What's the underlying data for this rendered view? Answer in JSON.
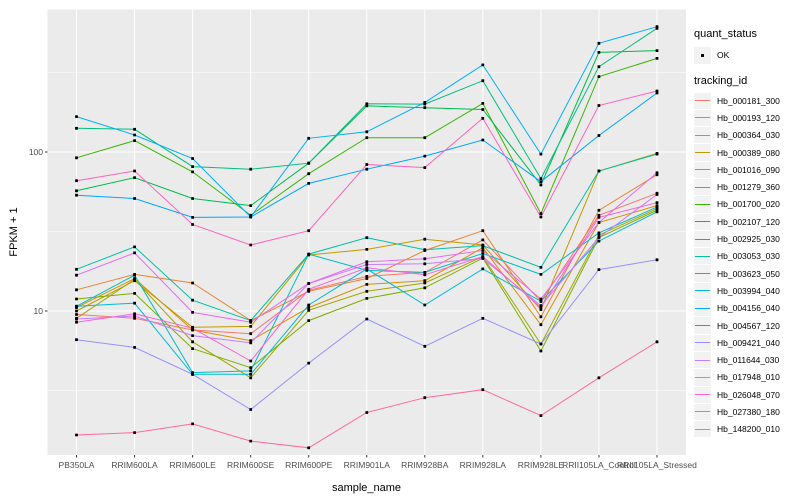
{
  "chart_data": {
    "type": "line",
    "title": "",
    "xlabel": "sample_name",
    "ylabel": "FPKM + 1",
    "y_scale": "log10",
    "y_ticks": [
      10,
      100
    ],
    "y_minor_ticks": [
      3.1623,
      31.623,
      316.23
    ],
    "ylim": [
      1.2,
      800
    ],
    "grid": true,
    "panel_bg": "#EBEBEB",
    "grid_color": "#FFFFFF",
    "point_color": "#000000",
    "x_categories": [
      "PB350LA",
      "RRIM600LA",
      "RRIM600LE",
      "RRIM600SE",
      "RRIM600PE",
      "RRIM901LA",
      "RRIM928BA",
      "RRIM928LA",
      "RRIM928LE",
      "RRII105LA_Control",
      "RRII105LA_Stressed"
    ],
    "series": [
      {
        "name": "Hb_000181_300",
        "color": "#F8766D",
        "values": [
          9.5,
          9.0,
          7.6,
          7.2,
          13.5,
          16.5,
          17.5,
          28,
          11.5,
          40,
          55
        ]
      },
      {
        "name": "Hb_000193_120",
        "color": "#EA8331",
        "values": [
          13.6,
          17,
          15,
          8.7,
          13.3,
          16,
          24,
          32,
          9.2,
          43,
          72
        ]
      },
      {
        "name": "Hb_000364_030",
        "color": "#D89000",
        "values": [
          10.5,
          16,
          7.6,
          6.5,
          10.5,
          14.7,
          15.5,
          25,
          8.2,
          36,
          46
        ]
      },
      {
        "name": "Hb_000389_080",
        "color": "#C09B00",
        "values": [
          10,
          15.5,
          7.9,
          8.0,
          22.5,
          24.4,
          28.3,
          26,
          10.2,
          76,
          98
        ]
      },
      {
        "name": "Hb_001016_090",
        "color": "#A3A500",
        "values": [
          9.0,
          15.8,
          6.4,
          3.8,
          10.1,
          13.3,
          15,
          22,
          6.2,
          30,
          44
        ]
      },
      {
        "name": "Hb_001279_360",
        "color": "#7CAE00",
        "values": [
          11.9,
          12.9,
          5.8,
          4.4,
          8.7,
          12.0,
          14,
          21.5,
          5.6,
          29,
          43
        ]
      },
      {
        "name": "Hb_001700_020",
        "color": "#39B600",
        "values": [
          92,
          118,
          75,
          40,
          73,
          123,
          123,
          202,
          41,
          298,
          388
        ]
      },
      {
        "name": "Hb_002107_120",
        "color": "#00BB4E",
        "values": [
          57,
          69,
          51,
          46,
          85,
          195,
          190,
          185,
          62,
          423,
          434
        ]
      },
      {
        "name": "Hb_002925_030",
        "color": "#00BF7D",
        "values": [
          141,
          139,
          81,
          78,
          85,
          201,
          200,
          281,
          68,
          344,
          600
        ]
      },
      {
        "name": "Hb_003053_030",
        "color": "#00C1A3",
        "values": [
          18.3,
          25.3,
          11.7,
          8.7,
          22.8,
          28.9,
          24.3,
          25.8,
          18.8,
          76,
          97
        ]
      },
      {
        "name": "Hb_003623_050",
        "color": "#00BFC4",
        "values": [
          10.7,
          16.8,
          4.1,
          4.2,
          22.8,
          18,
          17.5,
          23,
          17,
          31,
          45
        ]
      },
      {
        "name": "Hb_003994_040",
        "color": "#00BBDA",
        "values": [
          10.7,
          11.2,
          4.0,
          4.0,
          10.9,
          18.4,
          10.9,
          18.4,
          11.5,
          27.5,
          42
        ]
      },
      {
        "name": "Hb_004156_040",
        "color": "#00B0F6",
        "values": [
          167,
          128,
          91,
          39,
          122,
          134,
          205,
          353,
          97,
          483,
          614
        ]
      },
      {
        "name": "Hb_004567_120",
        "color": "#00A5FF",
        "values": [
          53.5,
          51,
          38.8,
          39,
          63.5,
          77.9,
          94.3,
          119,
          65,
          127,
          235
        ]
      },
      {
        "name": "Hb_009421_040",
        "color": "#9590FF",
        "values": [
          6.6,
          5.9,
          4.0,
          2.4,
          4.7,
          8.9,
          6.0,
          9.0,
          6.2,
          18.2,
          21
        ]
      },
      {
        "name": "Hb_011644_030",
        "color": "#C77CFF",
        "values": [
          8.9,
          9.3,
          7.0,
          6.3,
          14.9,
          19.6,
          19.8,
          21.4,
          10.8,
          29,
          54
        ]
      },
      {
        "name": "Hb_017948_010",
        "color": "#E76BF3",
        "values": [
          16.8,
          23.2,
          9.8,
          8.5,
          14.9,
          20.4,
          21.3,
          24,
          11.9,
          36,
          74
        ]
      },
      {
        "name": "Hb_026048_070",
        "color": "#FA62DB",
        "values": [
          8.5,
          9.6,
          7.8,
          4.85,
          13.7,
          18.7,
          16.9,
          22,
          10.5,
          38.8,
          48
        ]
      },
      {
        "name": "Hb_027380_180",
        "color": "#FF62BC",
        "values": [
          66,
          76,
          35,
          26,
          32,
          83.5,
          79.8,
          163,
          39,
          196,
          242
        ]
      },
      {
        "name": "Hb_148200_010",
        "color": "#FF6A98",
        "values": [
          1.66,
          1.72,
          1.95,
          1.52,
          1.38,
          2.3,
          2.85,
          3.2,
          2.2,
          3.8,
          6.4
        ]
      }
    ]
  },
  "legend": {
    "quant_status": {
      "title": "quant_status",
      "items": [
        {
          "label": "OK",
          "marker": "black-square"
        }
      ]
    },
    "tracking_id": {
      "title": "tracking_id"
    }
  }
}
